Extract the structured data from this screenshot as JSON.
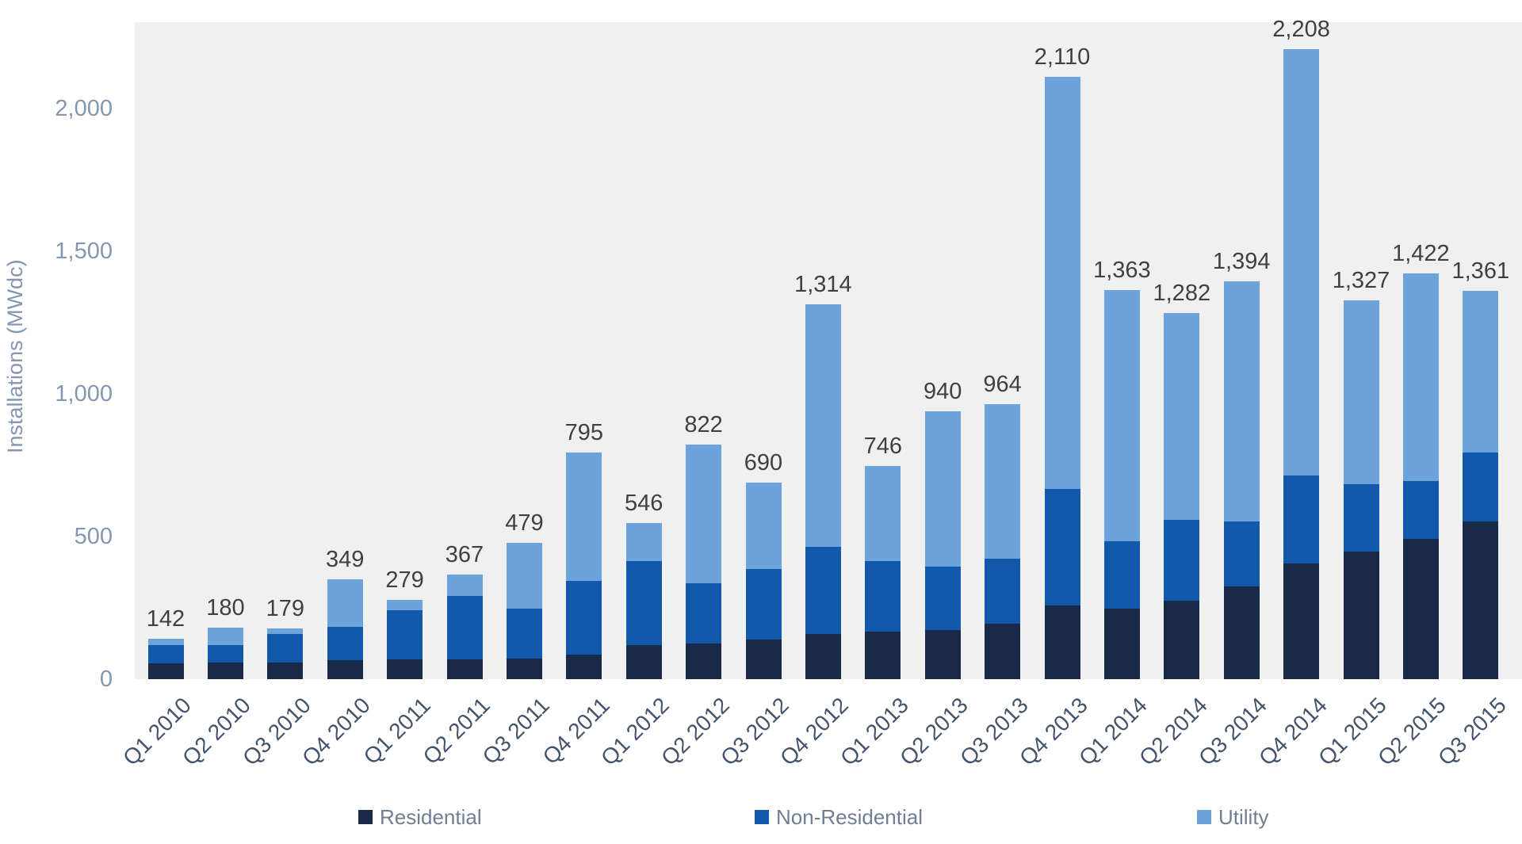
{
  "chart_data": {
    "type": "bar",
    "stacked": true,
    "title": "",
    "xlabel": "",
    "ylabel": "Installations (MWdc)",
    "ylim": [
      0,
      2302
    ],
    "grid": false,
    "legend_position": "bottom",
    "categories": [
      "Q1 2010",
      "Q2 2010",
      "Q3 2010",
      "Q4 2010",
      "Q1 2011",
      "Q2 2011",
      "Q3 2011",
      "Q4 2011",
      "Q1 2012",
      "Q2 2012",
      "Q3 2012",
      "Q4 2012",
      "Q1 2013",
      "Q2 2013",
      "Q3 2013",
      "Q4 2013",
      "Q1 2014",
      "Q2 2014",
      "Q3 2014",
      "Q4 2014",
      "Q1 2015",
      "Q2 2015",
      "Q3 2015"
    ],
    "series": [
      {
        "name": "Residential",
        "color": "#182a47",
        "values": [
          56,
          58,
          58,
          67,
          70,
          70,
          72,
          86,
          120,
          124,
          140,
          158,
          167,
          172,
          195,
          259,
          247,
          275,
          325,
          406,
          448,
          492,
          553
        ]
      },
      {
        "name": "Non-Residential",
        "color": "#1259ac",
        "values": [
          64,
          61,
          99,
          115,
          173,
          222,
          174,
          258,
          295,
          212,
          246,
          305,
          248,
          222,
          228,
          409,
          236,
          284,
          228,
          309,
          234,
          203,
          242
        ]
      },
      {
        "name": "Utility",
        "color": "#6ca3da",
        "values": [
          22,
          61,
          22,
          167,
          36,
          75,
          233,
          451,
          131,
          486,
          304,
          851,
          331,
          546,
          541,
          1442,
          880,
          723,
          841,
          1493,
          645,
          727,
          566
        ]
      }
    ],
    "totals": [
      "142",
      "180",
      "179",
      "349",
      "279",
      "367",
      "479",
      "795",
      "546",
      "822",
      "690",
      "1,314",
      "746",
      "940",
      "964",
      "2,110",
      "1,363",
      "1,282",
      "1,394",
      "2,208",
      "1,327",
      "1,422",
      "1,361"
    ],
    "y_ticks": [
      {
        "value": 0,
        "label": "0"
      },
      {
        "value": 500,
        "label": "500"
      },
      {
        "value": 1000,
        "label": "1,000"
      },
      {
        "value": 1500,
        "label": "1,500"
      },
      {
        "value": 2000,
        "label": "2,000"
      }
    ],
    "colors": {
      "plot_background": "#f0f0f0",
      "data_label": "#404040",
      "x_tick_text": "#44546a",
      "y_tick_text": "#8496b0",
      "axis_title_text": "#8496b0",
      "legend_text": "#707e92"
    }
  }
}
